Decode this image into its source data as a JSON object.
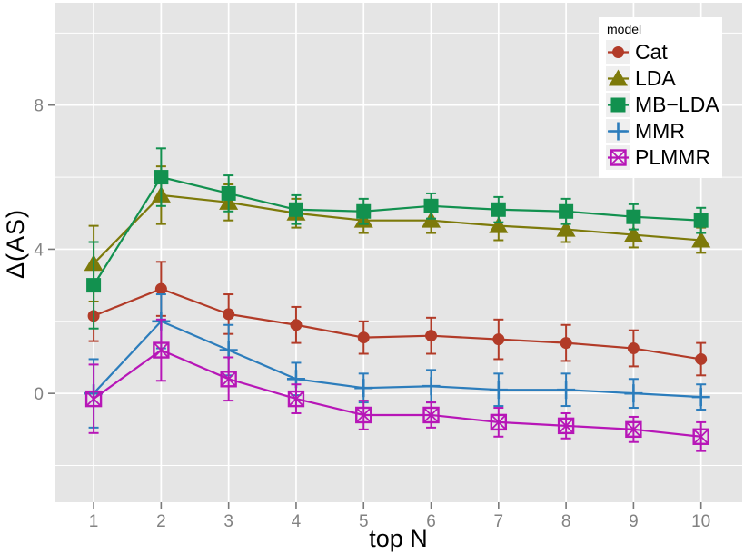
{
  "figure": {
    "background": "#ffffff",
    "panel_background": "#e5e5e5",
    "grid_color": "#ffffff",
    "tick_mark_color": "#7a7a7a",
    "tick_label_color": "#828282",
    "axis_title_color": "#000000"
  },
  "legend": {
    "title": "model",
    "background": "#ffffff",
    "key_background": "#efefef",
    "position": "top-right-inside"
  },
  "chart_data": {
    "type": "line",
    "title": "",
    "xlabel": "top N",
    "ylabel": "Δ(AS)",
    "x": [
      1,
      2,
      3,
      4,
      5,
      6,
      7,
      8,
      9,
      10
    ],
    "x_tick_labels": [
      "1",
      "2",
      "3",
      "4",
      "5",
      "6",
      "7",
      "8",
      "9",
      "10"
    ],
    "y_ticks": [
      0,
      4,
      8
    ],
    "y_tick_labels": [
      "0",
      "4",
      "8"
    ],
    "y_minor_ticks": [
      -2,
      2,
      6,
      10
    ],
    "xlim": [
      0.42,
      10.61
    ],
    "ylim": [
      -3.02,
      10.84
    ],
    "grid": true,
    "error_bars": true,
    "legend_title": "model",
    "series": [
      {
        "name": "Cat",
        "color": "#b23b28",
        "marker": "circle",
        "values": [
          2.15,
          2.9,
          2.2,
          1.9,
          1.55,
          1.6,
          1.5,
          1.4,
          1.25,
          0.95
        ],
        "errors": [
          0.7,
          0.75,
          0.55,
          0.5,
          0.45,
          0.5,
          0.55,
          0.5,
          0.5,
          0.45
        ]
      },
      {
        "name": "LDA",
        "color": "#7d7a0a",
        "marker": "triangle",
        "values": [
          3.6,
          5.5,
          5.3,
          5.0,
          4.8,
          4.8,
          4.65,
          4.55,
          4.4,
          4.25
        ],
        "errors": [
          1.05,
          0.8,
          0.5,
          0.4,
          0.35,
          0.35,
          0.4,
          0.35,
          0.35,
          0.35
        ]
      },
      {
        "name": "MB−LDA",
        "color": "#12914f",
        "marker": "square",
        "values": [
          3.0,
          6.0,
          5.55,
          5.1,
          5.05,
          5.2,
          5.1,
          5.05,
          4.9,
          4.8
        ],
        "errors": [
          1.2,
          0.8,
          0.5,
          0.4,
          0.35,
          0.35,
          0.35,
          0.35,
          0.35,
          0.35
        ]
      },
      {
        "name": "MMR",
        "color": "#2c7dbc",
        "marker": "plus",
        "values": [
          0.0,
          2.0,
          1.2,
          0.4,
          0.15,
          0.2,
          0.1,
          0.1,
          0.0,
          -0.1
        ],
        "errors": [
          0.95,
          0.75,
          0.7,
          0.45,
          0.4,
          0.45,
          0.45,
          0.45,
          0.4,
          0.35
        ]
      },
      {
        "name": "PLMMR",
        "color": "#b716b7",
        "marker": "square-x",
        "values": [
          -0.15,
          1.2,
          0.4,
          -0.15,
          -0.6,
          -0.6,
          -0.8,
          -0.9,
          -1.0,
          -1.2
        ],
        "errors": [
          0.95,
          0.85,
          0.6,
          0.4,
          0.4,
          0.35,
          0.4,
          0.35,
          0.35,
          0.4
        ]
      }
    ]
  }
}
